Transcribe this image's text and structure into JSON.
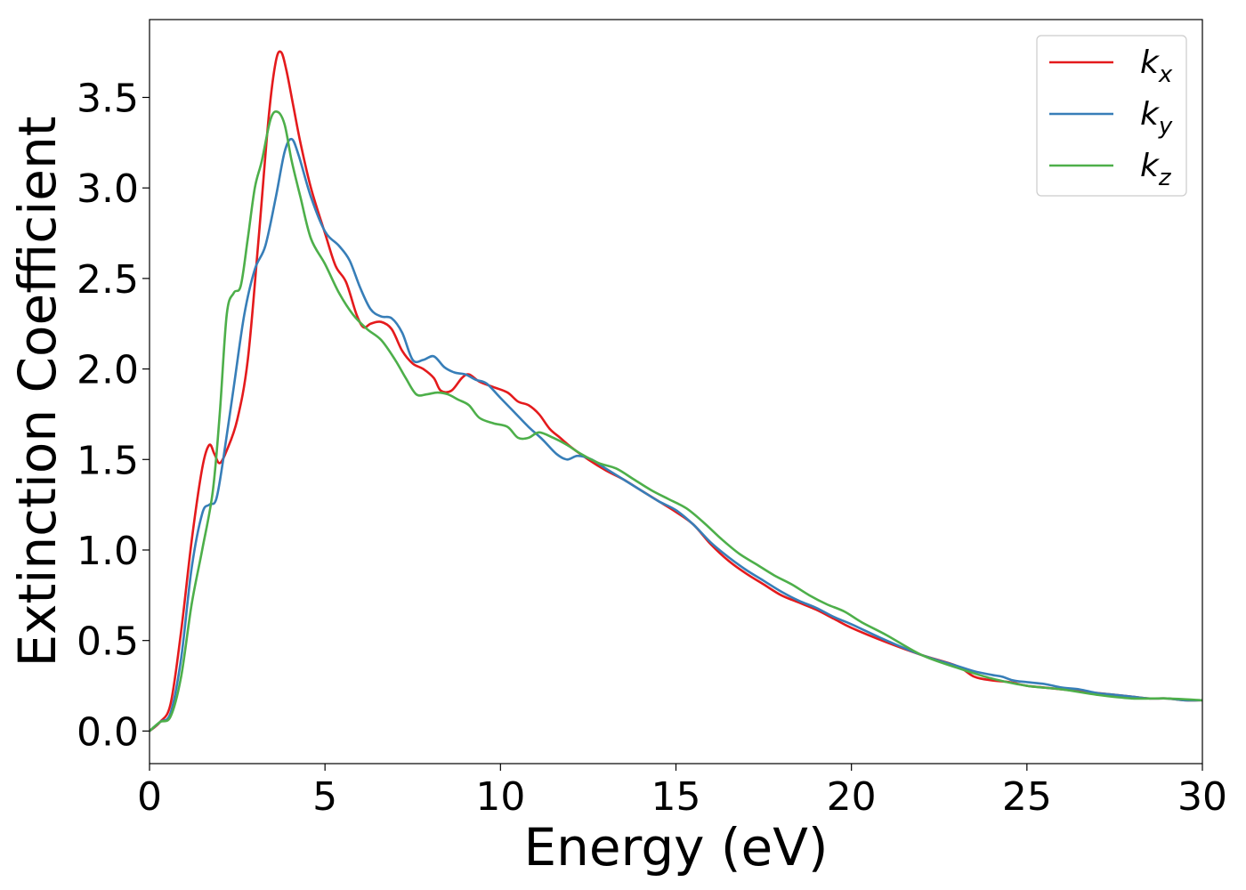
{
  "chart_data": {
    "type": "line",
    "xlabel": "Energy (eV)",
    "ylabel": "Extinction Coefficient",
    "xlim": [
      0,
      30
    ],
    "ylim": [
      -0.18,
      3.93
    ],
    "xticks": [
      0,
      5,
      10,
      15,
      20,
      25,
      30
    ],
    "xtick_labels": [
      "0",
      "5",
      "10",
      "15",
      "20",
      "25",
      "30"
    ],
    "yticks": [
      0.0,
      0.5,
      1.0,
      1.5,
      2.0,
      2.5,
      3.0,
      3.5
    ],
    "ytick_labels": [
      "0.0",
      "0.5",
      "1.0",
      "1.5",
      "2.0",
      "2.5",
      "3.0",
      "3.5"
    ],
    "grid": false,
    "legend_position": "top-right",
    "series": [
      {
        "name": "k_x",
        "label_main": "k",
        "label_sub": "x",
        "color": "#e41a1c",
        "x": [
          0,
          0.3,
          0.6,
          0.9,
          1.2,
          1.5,
          1.7,
          1.85,
          2.0,
          2.2,
          2.5,
          2.8,
          3.1,
          3.4,
          3.6,
          3.75,
          3.9,
          4.1,
          4.3,
          4.6,
          5.0,
          5.3,
          5.6,
          5.9,
          6.1,
          6.3,
          6.6,
          6.9,
          7.2,
          7.5,
          7.8,
          8.1,
          8.3,
          8.6,
          8.9,
          9.1,
          9.4,
          9.8,
          10.2,
          10.5,
          10.8,
          11.1,
          11.4,
          11.7,
          12.0,
          12.5,
          13.0,
          13.5,
          14.0,
          14.5,
          15.0,
          15.5,
          16.0,
          16.5,
          17.0,
          17.5,
          18.0,
          18.5,
          19.0,
          19.5,
          20.0,
          21.0,
          22.0,
          23.0,
          23.5,
          24.0,
          24.5,
          25.0,
          25.5,
          26.0,
          26.5,
          27.0,
          27.5,
          28.0,
          28.5,
          29.0,
          29.5,
          30.0
        ],
        "y": [
          0.0,
          0.05,
          0.15,
          0.55,
          1.05,
          1.45,
          1.58,
          1.53,
          1.48,
          1.55,
          1.72,
          2.05,
          2.7,
          3.4,
          3.7,
          3.75,
          3.65,
          3.45,
          3.25,
          3.0,
          2.75,
          2.57,
          2.48,
          2.3,
          2.23,
          2.25,
          2.26,
          2.22,
          2.1,
          2.03,
          2.0,
          1.95,
          1.88,
          1.88,
          1.95,
          1.97,
          1.93,
          1.9,
          1.87,
          1.82,
          1.8,
          1.75,
          1.67,
          1.62,
          1.57,
          1.5,
          1.44,
          1.39,
          1.33,
          1.27,
          1.21,
          1.14,
          1.03,
          0.94,
          0.87,
          0.81,
          0.75,
          0.71,
          0.67,
          0.62,
          0.57,
          0.49,
          0.42,
          0.36,
          0.3,
          0.28,
          0.27,
          0.25,
          0.24,
          0.23,
          0.22,
          0.21,
          0.2,
          0.19,
          0.18,
          0.18,
          0.17,
          0.17
        ]
      },
      {
        "name": "k_y",
        "label_main": "k",
        "label_sub": "y",
        "color": "#377eb8",
        "x": [
          0,
          0.3,
          0.6,
          0.9,
          1.2,
          1.5,
          1.7,
          1.9,
          2.1,
          2.4,
          2.7,
          3.0,
          3.3,
          3.6,
          3.85,
          4.05,
          4.25,
          4.6,
          5.0,
          5.4,
          5.7,
          6.0,
          6.3,
          6.6,
          6.9,
          7.2,
          7.5,
          7.8,
          8.1,
          8.4,
          8.7,
          9.0,
          9.3,
          9.6,
          10.0,
          10.4,
          10.8,
          11.2,
          11.6,
          11.9,
          12.2,
          12.6,
          13.0,
          13.5,
          14.0,
          14.5,
          15.0,
          15.5,
          16.0,
          16.5,
          17.0,
          17.5,
          18.0,
          18.5,
          19.0,
          19.5,
          20.0,
          21.0,
          22.0,
          23.0,
          23.5,
          24.0,
          24.3,
          24.6,
          25.0,
          25.5,
          26.0,
          26.5,
          27.0,
          27.5,
          28.0,
          28.5,
          29.0,
          29.5,
          30.0
        ],
        "y": [
          0.0,
          0.05,
          0.1,
          0.4,
          0.9,
          1.2,
          1.25,
          1.28,
          1.5,
          1.9,
          2.3,
          2.55,
          2.68,
          2.95,
          3.2,
          3.27,
          3.18,
          2.95,
          2.76,
          2.68,
          2.6,
          2.45,
          2.33,
          2.29,
          2.28,
          2.2,
          2.05,
          2.05,
          2.07,
          2.01,
          1.98,
          1.97,
          1.94,
          1.92,
          1.84,
          1.76,
          1.68,
          1.61,
          1.53,
          1.5,
          1.52,
          1.5,
          1.45,
          1.39,
          1.33,
          1.27,
          1.22,
          1.14,
          1.04,
          0.96,
          0.89,
          0.83,
          0.77,
          0.72,
          0.68,
          0.63,
          0.59,
          0.5,
          0.42,
          0.36,
          0.33,
          0.31,
          0.3,
          0.28,
          0.27,
          0.26,
          0.24,
          0.23,
          0.21,
          0.2,
          0.19,
          0.18,
          0.18,
          0.17,
          0.17
        ]
      },
      {
        "name": "k_z",
        "label_main": "k",
        "label_sub": "z",
        "color": "#4daf4a",
        "x": [
          0,
          0.3,
          0.6,
          0.9,
          1.2,
          1.5,
          1.8,
          2.0,
          2.2,
          2.4,
          2.6,
          2.8,
          3.0,
          3.2,
          3.45,
          3.65,
          3.85,
          4.05,
          4.3,
          4.6,
          5.0,
          5.4,
          5.8,
          6.2,
          6.6,
          7.0,
          7.3,
          7.6,
          7.9,
          8.2,
          8.5,
          8.8,
          9.1,
          9.4,
          9.8,
          10.2,
          10.5,
          10.8,
          11.1,
          11.5,
          11.9,
          12.3,
          12.8,
          13.3,
          13.8,
          14.3,
          14.8,
          15.3,
          15.8,
          16.3,
          16.8,
          17.3,
          17.8,
          18.3,
          18.8,
          19.3,
          19.8,
          20.3,
          21.0,
          22.0,
          23.0,
          24.0,
          25.0,
          26.0,
          27.0,
          28.0,
          29.0,
          30.0
        ],
        "y": [
          0.0,
          0.05,
          0.08,
          0.3,
          0.7,
          1.0,
          1.32,
          1.75,
          2.3,
          2.42,
          2.46,
          2.72,
          3.0,
          3.15,
          3.38,
          3.42,
          3.35,
          3.15,
          2.95,
          2.72,
          2.58,
          2.42,
          2.3,
          2.22,
          2.16,
          2.05,
          1.95,
          1.86,
          1.86,
          1.87,
          1.86,
          1.83,
          1.8,
          1.73,
          1.7,
          1.68,
          1.62,
          1.62,
          1.65,
          1.62,
          1.58,
          1.53,
          1.48,
          1.45,
          1.39,
          1.33,
          1.28,
          1.23,
          1.15,
          1.06,
          0.98,
          0.92,
          0.86,
          0.81,
          0.75,
          0.7,
          0.66,
          0.6,
          0.53,
          0.42,
          0.35,
          0.29,
          0.25,
          0.23,
          0.2,
          0.18,
          0.18,
          0.17
        ]
      }
    ]
  }
}
